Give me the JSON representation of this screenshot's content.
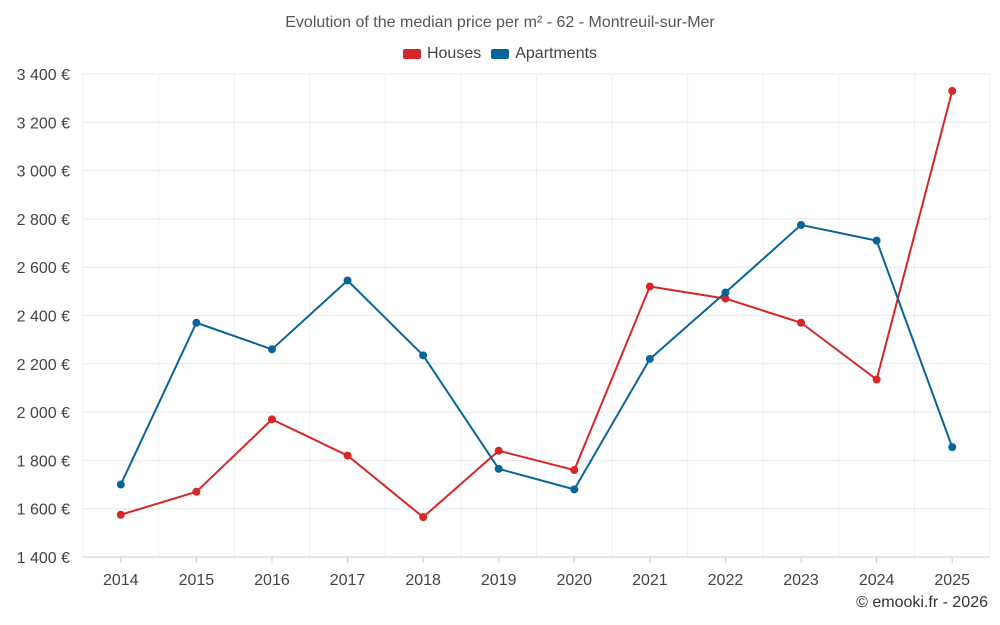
{
  "chart_data": {
    "type": "line",
    "title": "Evolution of the median price per m² - 62 - Montreuil-sur-Mer",
    "xlabel": "",
    "ylabel": "",
    "categories": [
      "2014",
      "2015",
      "2016",
      "2017",
      "2018",
      "2019",
      "2020",
      "2021",
      "2022",
      "2023",
      "2024",
      "2025"
    ],
    "ylim": [
      1400,
      3400
    ],
    "yticks": [
      1400,
      1600,
      1800,
      2000,
      2200,
      2400,
      2600,
      2800,
      3000,
      3200,
      3400
    ],
    "ytick_labels": [
      "1 400 €",
      "1 600 €",
      "1 800 €",
      "2 000 €",
      "2 200 €",
      "2 400 €",
      "2 600 €",
      "2 800 €",
      "3 000 €",
      "3 200 €",
      "3 400 €"
    ],
    "legend_position": "top-center",
    "grid": true,
    "series": [
      {
        "name": "Houses",
        "color": "#d62728",
        "values": [
          1575,
          1670,
          1970,
          1820,
          1565,
          1840,
          1760,
          2520,
          2470,
          2370,
          2135,
          3330
        ]
      },
      {
        "name": "Apartments",
        "color": "#07659a",
        "values": [
          1700,
          2370,
          2260,
          2545,
          2235,
          1765,
          1680,
          2220,
          2495,
          2775,
          2710,
          1855
        ]
      }
    ]
  },
  "credit": "© emooki.fr - 2026"
}
